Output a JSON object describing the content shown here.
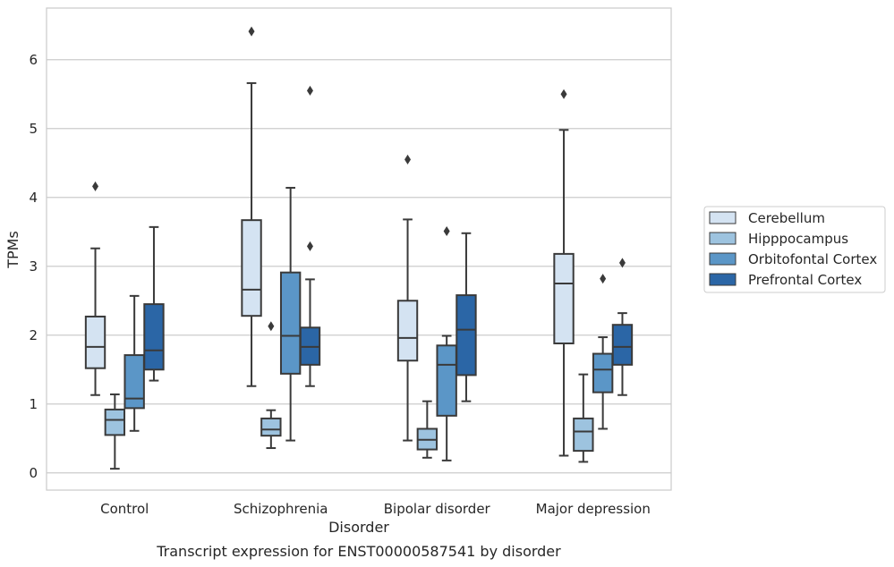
{
  "chart_data": {
    "type": "box",
    "title": "",
    "caption": "Transcript expression for ENST00000587541 by disorder",
    "xlabel": "Disorder",
    "ylabel": "TPMs",
    "ylim": [
      -0.25,
      6.75
    ],
    "yticks": [
      0,
      1,
      2,
      3,
      4,
      5,
      6
    ],
    "grid": true,
    "legend_position": "right",
    "categories": [
      "Control",
      "Schizophrenia",
      "Bipolar disorder",
      "Major depression"
    ],
    "series": [
      {
        "name": "Cerebellum",
        "color": "#d4e3f2",
        "boxes": [
          {
            "whislo": 1.13,
            "q1": 1.52,
            "med": 1.83,
            "q3": 2.27,
            "whishi": 3.26,
            "fliers": [
              4.16
            ]
          },
          {
            "whislo": 1.26,
            "q1": 2.28,
            "med": 2.66,
            "q3": 3.67,
            "whishi": 5.66,
            "fliers": [
              6.41
            ]
          },
          {
            "whislo": 0.47,
            "q1": 1.63,
            "med": 1.96,
            "q3": 2.5,
            "whishi": 3.68,
            "fliers": [
              4.55
            ]
          },
          {
            "whislo": 0.25,
            "q1": 1.88,
            "med": 2.75,
            "q3": 3.18,
            "whishi": 4.98,
            "fliers": [
              5.5
            ]
          }
        ]
      },
      {
        "name": "Hipppocampus",
        "color": "#9dc3df",
        "boxes": [
          {
            "whislo": 0.06,
            "q1": 0.55,
            "med": 0.77,
            "q3": 0.92,
            "whishi": 1.14,
            "fliers": []
          },
          {
            "whislo": 0.36,
            "q1": 0.54,
            "med": 0.63,
            "q3": 0.79,
            "whishi": 0.91,
            "fliers": [
              2.13
            ]
          },
          {
            "whislo": 0.22,
            "q1": 0.34,
            "med": 0.48,
            "q3": 0.64,
            "whishi": 1.04,
            "fliers": []
          },
          {
            "whislo": 0.16,
            "q1": 0.32,
            "med": 0.6,
            "q3": 0.79,
            "whishi": 1.43,
            "fliers": []
          }
        ]
      },
      {
        "name": "Orbitofontal Cortex",
        "color": "#5b96c7",
        "boxes": [
          {
            "whislo": 0.61,
            "q1": 0.94,
            "med": 1.08,
            "q3": 1.71,
            "whishi": 2.57,
            "fliers": []
          },
          {
            "whislo": 0.47,
            "q1": 1.44,
            "med": 1.99,
            "q3": 2.91,
            "whishi": 4.14,
            "fliers": []
          },
          {
            "whislo": 0.18,
            "q1": 0.83,
            "med": 1.57,
            "q3": 1.85,
            "whishi": 1.99,
            "fliers": [
              3.51
            ]
          },
          {
            "whislo": 0.64,
            "q1": 1.17,
            "med": 1.5,
            "q3": 1.73,
            "whishi": 1.97,
            "fliers": [
              2.82
            ]
          }
        ]
      },
      {
        "name": "Prefrontal Cortex",
        "color": "#2b66a6",
        "boxes": [
          {
            "whislo": 1.34,
            "q1": 1.5,
            "med": 1.78,
            "q3": 2.45,
            "whishi": 3.57,
            "fliers": []
          },
          {
            "whislo": 1.26,
            "q1": 1.57,
            "med": 1.83,
            "q3": 2.11,
            "whishi": 2.81,
            "fliers": [
              3.29,
              5.55
            ]
          },
          {
            "whislo": 1.04,
            "q1": 1.42,
            "med": 2.08,
            "q3": 2.58,
            "whishi": 3.48,
            "fliers": []
          },
          {
            "whislo": 1.13,
            "q1": 1.57,
            "med": 1.83,
            "q3": 2.15,
            "whishi": 2.32,
            "fliers": [
              3.05
            ]
          }
        ]
      }
    ]
  }
}
